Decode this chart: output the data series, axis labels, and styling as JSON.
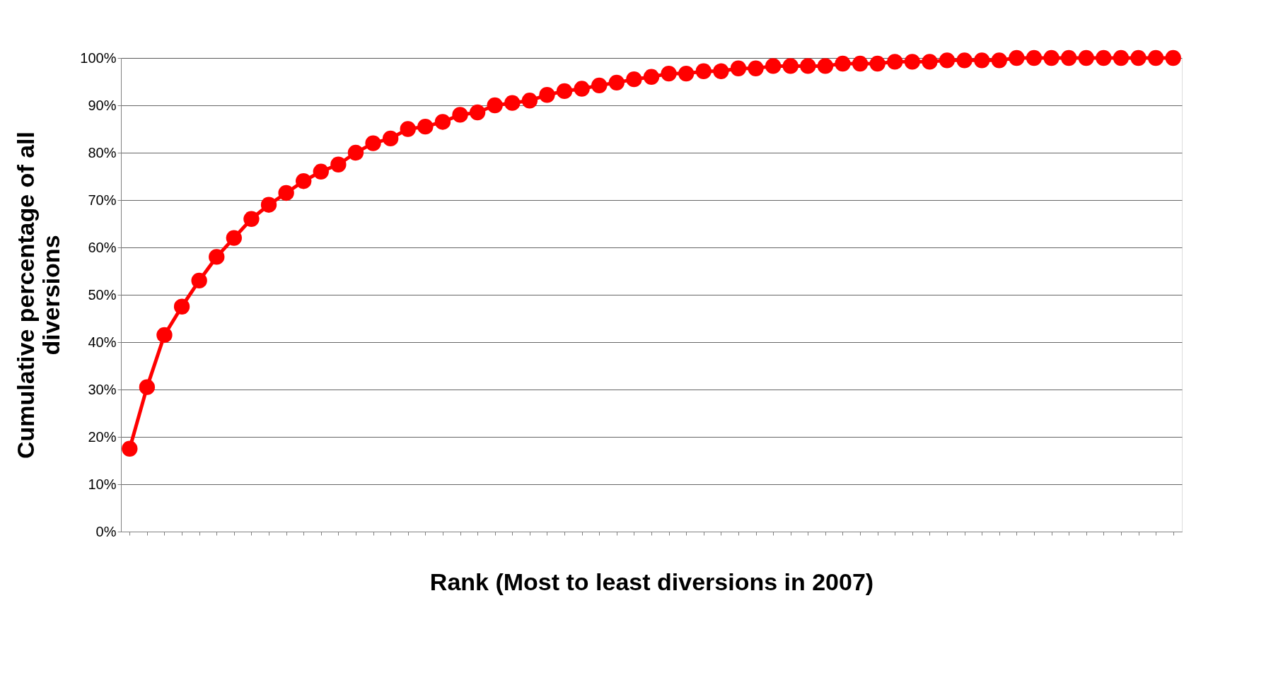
{
  "chart_data": {
    "type": "line",
    "xlabel": "Rank (Most to least diversions in 2007)",
    "ylabel": "Cumulative percentage of all diversions",
    "categories": [
      null,
      null,
      null,
      null,
      null,
      null,
      null,
      null,
      null,
      null,
      null,
      null,
      null,
      null,
      null,
      null,
      null,
      null,
      null,
      null,
      null,
      null,
      null,
      null,
      null,
      null,
      null,
      null,
      null,
      null,
      null,
      null,
      null,
      null,
      null,
      null,
      null,
      null,
      null,
      null,
      null,
      null,
      null,
      null,
      null,
      null,
      null,
      null,
      null,
      null,
      null,
      null,
      null,
      null,
      null,
      null,
      null,
      null,
      null,
      null,
      null
    ],
    "series": [
      {
        "color": "#ff0000",
        "values": [
          17.5,
          30.5,
          41.5,
          47.5,
          53,
          58,
          62,
          66,
          69,
          71.5,
          74,
          76,
          77.5,
          80,
          82,
          83,
          85,
          85.5,
          86.5,
          88,
          88.5,
          90,
          90.5,
          91,
          92.2,
          93,
          93.5,
          94.2,
          94.8,
          95.5,
          96,
          96.7,
          96.7,
          97.2,
          97.2,
          97.8,
          97.8,
          98.3,
          98.3,
          98.3,
          98.3,
          98.8,
          98.8,
          98.8,
          99.2,
          99.2,
          99.2,
          99.5,
          99.5,
          99.5,
          99.5,
          100,
          100,
          100,
          100,
          100,
          100,
          100,
          100,
          100,
          100
        ]
      }
    ],
    "ylim": [
      0,
      100
    ],
    "yticks": [
      {
        "value": 0,
        "label": "0%"
      },
      {
        "value": 10,
        "label": "10%"
      },
      {
        "value": 20,
        "label": "20%"
      },
      {
        "value": 30,
        "label": "30%"
      },
      {
        "value": 40,
        "label": "40%"
      },
      {
        "value": 50,
        "label": "50%"
      },
      {
        "value": 60,
        "label": "60%"
      },
      {
        "value": 70,
        "label": "70%"
      },
      {
        "value": 80,
        "label": "80%"
      },
      {
        "value": 90,
        "label": "90%"
      },
      {
        "value": 100,
        "label": "100%"
      }
    ],
    "grid": "y",
    "tick_labels": "y",
    "marker": "circle",
    "line_style": "solid"
  }
}
